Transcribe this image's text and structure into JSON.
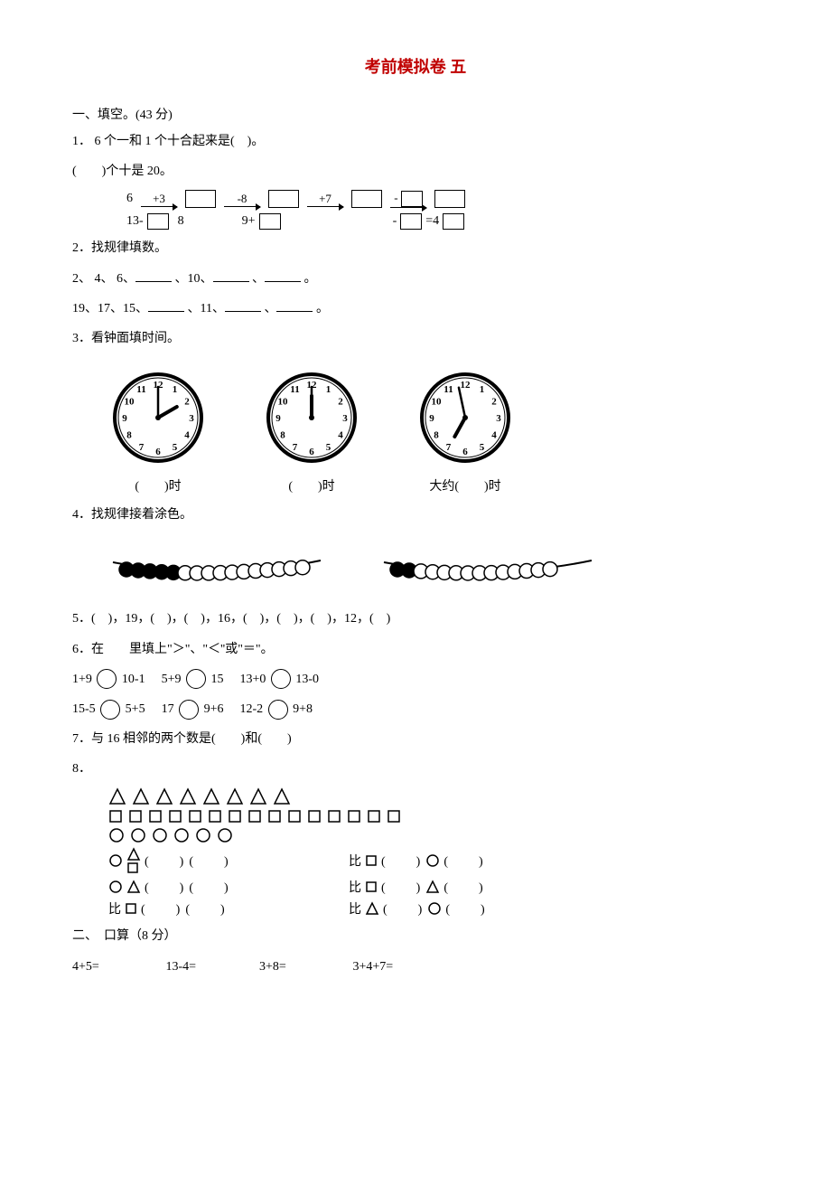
{
  "title": "考前模拟卷 五",
  "s1": {
    "heading": "一、填空。(43 分)",
    "q1": {
      "line1": "1． 6 个一和 1 个十合起来是(　)。",
      "line2": "(　　)个十是 20。",
      "chain_start": "6",
      "ops": [
        "+3",
        "-8",
        "+7"
      ],
      "row2_left": "13-",
      "row2_a": "8",
      "row2_b": "9+",
      "row2_eq": "=4"
    },
    "q2": {
      "label": "2．找规律填数。",
      "seq1_parts": [
        "2、 4、 6、",
        "、10、",
        "、",
        " 。"
      ],
      "seq2_parts": [
        "19、17、15、",
        "、11、",
        "、",
        " 。"
      ]
    },
    "q3": {
      "label": "3．看钟面填时间。",
      "caps": [
        "(　　)时",
        "(　　)时",
        "大约(　　)时"
      ],
      "clocks": [
        {
          "hour": 2,
          "minute": 0
        },
        {
          "hour": 12,
          "minute": 0
        },
        {
          "hour": 6,
          "minute": 58
        }
      ]
    },
    "q4": {
      "label": "4．找规律接着涂色。",
      "bead_sets": [
        [
          1,
          1,
          1,
          1,
          1,
          0,
          0,
          0,
          0,
          0,
          0,
          0,
          0,
          0,
          0,
          0
        ],
        [
          1,
          1,
          0,
          0,
          0,
          0,
          0,
          0,
          0,
          0,
          0,
          0,
          0,
          0
        ]
      ]
    },
    "q5": "5．(　)，19，(　)，(　)，16，(　)，(　)，(　)，12，(　)",
    "q6": {
      "label": "6．在　　里填上\"＞\"、\"＜''或\"＝\"。",
      "row1": [
        {
          "l": "1+9",
          "r": "10-1"
        },
        {
          "l": "5+9",
          "r": "15"
        },
        {
          "l": "13+0",
          "r": "13-0"
        }
      ],
      "row2": [
        {
          "l": "15-5",
          "r": "5+5"
        },
        {
          "l": "17",
          "r": "9+6"
        },
        {
          "l": "12-2",
          "r": "9+8"
        }
      ]
    },
    "q7": "7．与 16 相邻的两个数是(　　)和(　　)",
    "q8": {
      "label": "8．",
      "tri_count": 8,
      "sq_count": 15,
      "circ_count": 6,
      "word_bi": "比",
      "paren": "(　　)"
    }
  },
  "s2": {
    "heading": "二、　口算（8 分）",
    "row": [
      "4+5=",
      "13-4=",
      "3+8=",
      "3+4+7="
    ]
  },
  "colors": {
    "title": "#c00000",
    "text": "#000000",
    "bg": "#ffffff"
  }
}
